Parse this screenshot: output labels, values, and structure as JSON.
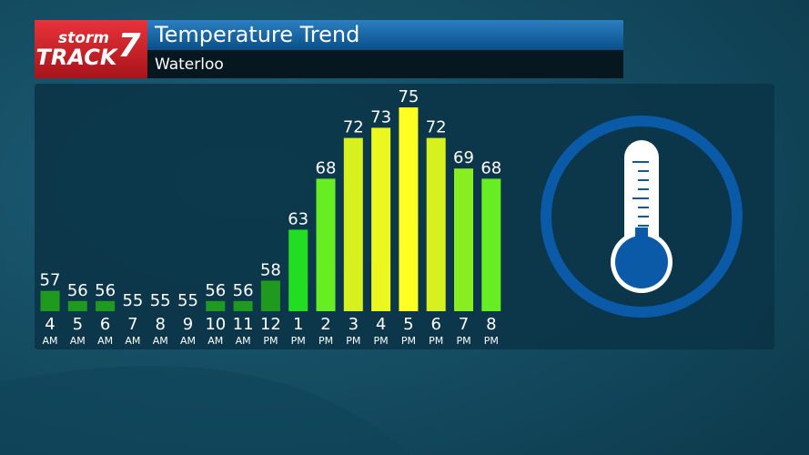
{
  "header": {
    "logo_top": "storm",
    "logo_bottom": "TRACK",
    "logo_number": "7"
  },
  "chart_data": {
    "type": "bar",
    "title": "Temperature Trend",
    "subtitle": "Waterloo",
    "categories": [
      [
        "4",
        "AM"
      ],
      [
        "5",
        "AM"
      ],
      [
        "6",
        "AM"
      ],
      [
        "7",
        "AM"
      ],
      [
        "8",
        "AM"
      ],
      [
        "9",
        "AM"
      ],
      [
        "10",
        "AM"
      ],
      [
        "11",
        "AM"
      ],
      [
        "12",
        "PM"
      ],
      [
        "1",
        "PM"
      ],
      [
        "2",
        "PM"
      ],
      [
        "3",
        "PM"
      ],
      [
        "4",
        "PM"
      ],
      [
        "5",
        "PM"
      ],
      [
        "6",
        "PM"
      ],
      [
        "7",
        "PM"
      ],
      [
        "8",
        "PM"
      ]
    ],
    "values": [
      57,
      56,
      56,
      55,
      55,
      55,
      56,
      56,
      58,
      63,
      68,
      72,
      73,
      75,
      72,
      69,
      68
    ],
    "colors": [
      "#1f9a1f",
      "#1f9a1f",
      "#1f9a1f",
      "#1f9a1f",
      "#1f9a1f",
      "#1f9a1f",
      "#1f9a1f",
      "#1f9a1f",
      "#1f9a1f",
      "#22dd22",
      "#66ee22",
      "#d6f020",
      "#eaf820",
      "#ffff22",
      "#d6f020",
      "#88ee22",
      "#66ee22"
    ],
    "ylim": [
      55,
      75
    ]
  }
}
